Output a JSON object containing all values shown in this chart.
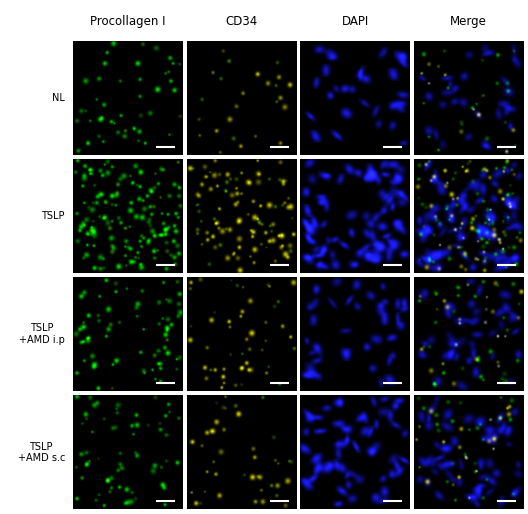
{
  "col_labels": [
    "Procollagen I",
    "CD34",
    "DAPI",
    "Merge"
  ],
  "row_labels": [
    "NL",
    "TSLP",
    "TSLP\n+AMD i.p",
    "TSLP\n+AMD s.c"
  ],
  "figsize": [
    5.28,
    5.14
  ],
  "dpi": 100,
  "text_color": "#000000",
  "fig_bg": "#ffffff",
  "col_label_fontsize": 8.5,
  "row_label_fontsize": 7.0,
  "rows": 4,
  "cols": 4,
  "seed": 42,
  "row_descriptions": {
    "NL": {
      "n_green": 40,
      "n_yellow": 15,
      "n_blue": 30
    },
    "TSLP": {
      "n_green": 130,
      "n_yellow": 80,
      "n_blue": 90
    },
    "TSLP_ip": {
      "n_green": 60,
      "n_yellow": 35,
      "n_blue": 40
    },
    "TSLP_sc": {
      "n_green": 55,
      "n_yellow": 30,
      "n_blue": 60
    }
  }
}
